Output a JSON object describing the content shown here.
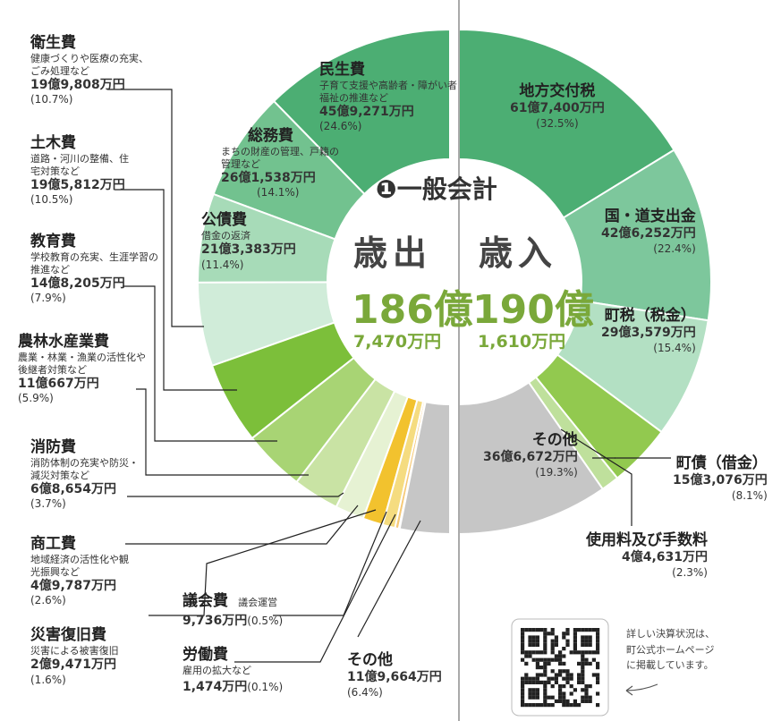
{
  "section_title": "❶一般会計",
  "header_fragment": "",
  "expenditure": {
    "title": "歳出",
    "total_big": "186億",
    "total_small": "7,470万円"
  },
  "revenue": {
    "title": "歳入",
    "total_big": "190億",
    "total_small": "1,610万円"
  },
  "qr_note": [
    "詳しい決算状況は、",
    "町公式ホームページ",
    "に掲載しています。"
  ],
  "chart_data": [
    {
      "type": "pie",
      "title": "歳出",
      "unit": "%",
      "slices": [
        {
          "name": "民生費",
          "desc": "子育て支援や高齢者・障がい者福祉の推進など",
          "amount": "45億9,271万円",
          "value": 24.6,
          "color": "#4cae73"
        },
        {
          "name": "総務費",
          "desc": "まちの財産の管理、戸籍の管理など",
          "amount": "26億1,538万円",
          "value": 14.1,
          "color": "#72c28f"
        },
        {
          "name": "公債費",
          "desc": "借金の返済",
          "amount": "21億3,383万円",
          "value": 11.4,
          "color": "#a7dbb8"
        },
        {
          "name": "衛生費",
          "desc": "健康づくりや医療の充実、ごみ処理など",
          "amount": "19億9,808万円",
          "value": 10.7,
          "color": "#d0ecd9"
        },
        {
          "name": "土木費",
          "desc": "道路・河川の整備、住宅対策など",
          "amount": "19億5,812万円",
          "value": 10.5,
          "color": "#7cbf3a"
        },
        {
          "name": "教育費",
          "desc": "学校教育の充実、生涯学習の推進など",
          "amount": "14億8,205万円",
          "value": 7.9,
          "color": "#a8d474"
        },
        {
          "name": "農林水産業費",
          "desc": "農業・林業・漁業の活性化や後継者対策など",
          "amount": "11億667万円",
          "value": 5.9,
          "color": "#c9e3a4"
        },
        {
          "name": "消防費",
          "desc": "消防体制の充実や防災・減災対策など",
          "amount": "6億8,654万円",
          "value": 3.7,
          "color": "#e6f2d3"
        },
        {
          "name": "商工費",
          "desc": "地域経済の活性化や観光振興など",
          "amount": "4億9,787万円",
          "value": 2.6,
          "color": "#f2c22e"
        },
        {
          "name": "災害復旧費",
          "desc": "災害による被害復旧",
          "amount": "2億9,471万円",
          "value": 1.6,
          "color": "#f5dc80"
        },
        {
          "name": "議会費",
          "desc": "議会運営",
          "amount": "9,736万円",
          "value": 0.5,
          "color": "#f6c977"
        },
        {
          "name": "労働費",
          "desc": "雇用の拡大など",
          "amount": "1,474万円",
          "value": 0.1,
          "color": "#f2b266"
        },
        {
          "name": "その他",
          "desc": "",
          "amount": "11億9,664万円",
          "value": 6.4,
          "color": "#c6c6c6"
        }
      ]
    },
    {
      "type": "pie",
      "title": "歳入",
      "unit": "%",
      "slices": [
        {
          "name": "地方交付税",
          "desc": "",
          "amount": "61億7,400万円",
          "value": 32.5,
          "color": "#4cae73"
        },
        {
          "name": "国・道支出金",
          "desc": "",
          "amount": "42億6,252万円",
          "value": 22.4,
          "color": "#7dc79c"
        },
        {
          "name": "町税（税金）",
          "desc": "",
          "amount": "29億3,579万円",
          "value": 15.4,
          "color": "#b3e0c3"
        },
        {
          "name": "町債（借金）",
          "desc": "",
          "amount": "15億3,076万円",
          "value": 8.1,
          "color": "#92c94f"
        },
        {
          "name": "使用料及び手数料",
          "desc": "",
          "amount": "4億4,631万円",
          "value": 2.3,
          "color": "#bfe09c"
        },
        {
          "name": "その他",
          "desc": "",
          "amount": "36億6,672万円",
          "value": 19.3,
          "color": "#c6c6c6"
        }
      ]
    }
  ]
}
